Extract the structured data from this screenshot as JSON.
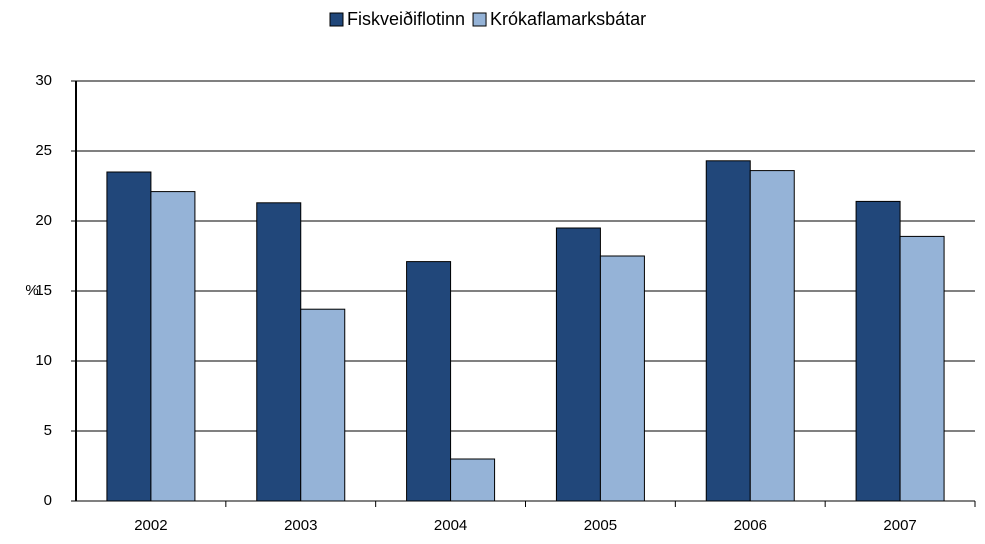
{
  "chart_data": {
    "type": "bar",
    "y_label": "%",
    "categories": [
      "2002",
      "2003",
      "2004",
      "2005",
      "2006",
      "2007"
    ],
    "series": [
      {
        "name": "Fiskveiðiflotinn",
        "color": "#21477a",
        "values": [
          23.5,
          21.3,
          17.1,
          19.5,
          24.3,
          21.4
        ]
      },
      {
        "name": "Krókaflamarksbátar",
        "color": "#95b3d7",
        "values": [
          22.1,
          13.7,
          3.0,
          17.5,
          23.6,
          18.9
        ]
      }
    ],
    "ylim": [
      0,
      30
    ],
    "yticks": [
      0,
      5,
      10,
      15,
      20,
      25,
      30
    ],
    "grid": true
  }
}
